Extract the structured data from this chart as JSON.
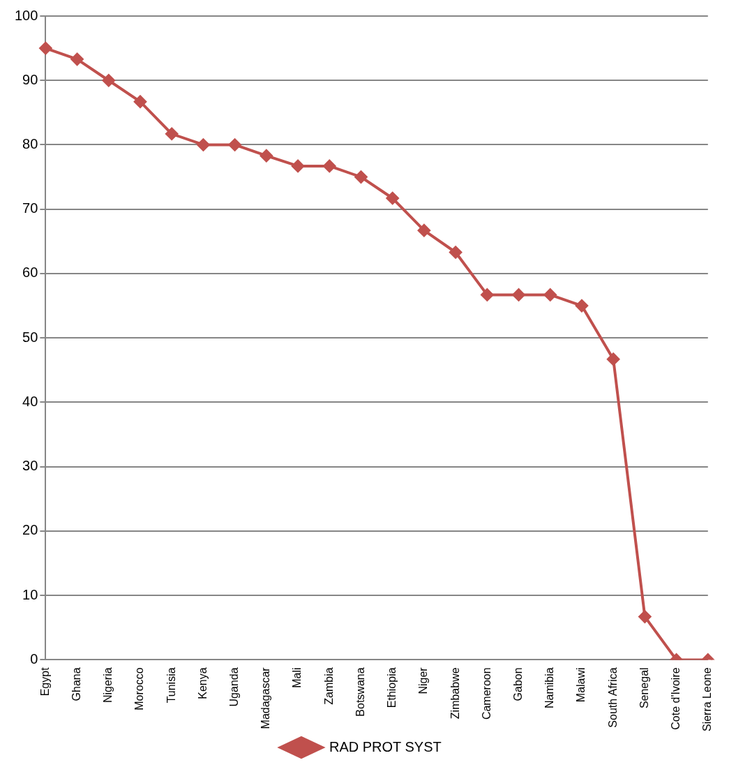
{
  "chart_data": {
    "type": "line",
    "categories": [
      "Egypt",
      "Ghana",
      "Nigeria",
      "Morocco",
      "Tunisia",
      "Kenya",
      "Uganda",
      "Madagascar",
      "Mali",
      "Zambia",
      "Botswana",
      "Ethiopia",
      "Niger",
      "Zimbabwe",
      "Cameroon",
      "Gabon",
      "Namibia",
      "Malawi",
      "South Africa",
      "Senegal",
      "Cote d'Ivoire",
      "Sierra Leone"
    ],
    "series": [
      {
        "name": "RAD PROT SYST",
        "color": "#c0504d",
        "values": [
          95,
          93.3,
          90,
          86.7,
          81.7,
          80,
          80,
          78.3,
          76.7,
          76.7,
          75,
          71.7,
          66.7,
          63.3,
          56.7,
          56.7,
          56.7,
          55,
          46.7,
          6.7,
          0,
          0
        ]
      }
    ],
    "ylim": [
      0,
      100
    ],
    "yticks": [
      0,
      10,
      20,
      30,
      40,
      50,
      60,
      70,
      80,
      90,
      100
    ],
    "grid": "y",
    "legend": "bottom",
    "marker": "diamond",
    "line_style": "solid"
  }
}
